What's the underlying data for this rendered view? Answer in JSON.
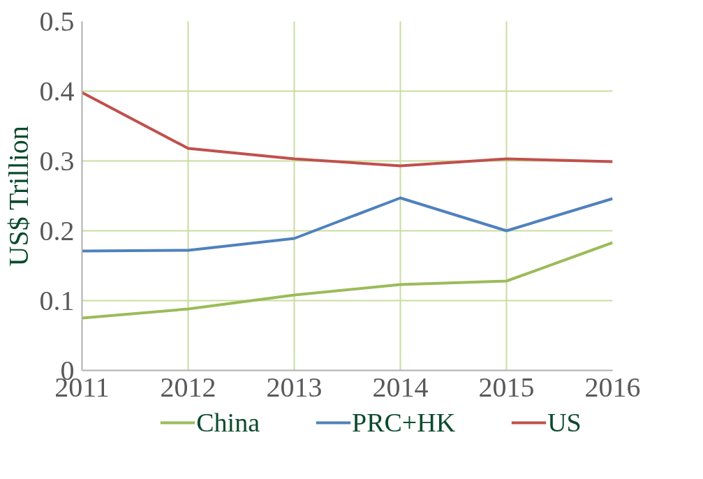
{
  "chart_data": {
    "type": "line",
    "ylabel": "US$ Trillion",
    "x": [
      2011,
      2012,
      2013,
      2014,
      2015,
      2016
    ],
    "series": [
      {
        "name": "China",
        "color": "#9bbb59",
        "values": [
          0.075,
          0.088,
          0.108,
          0.123,
          0.128,
          0.183
        ]
      },
      {
        "name": "PRC+HK",
        "color": "#4f81bd",
        "values": [
          0.171,
          0.172,
          0.189,
          0.247,
          0.2,
          0.246
        ]
      },
      {
        "name": "US",
        "color": "#c0504d",
        "values": [
          0.398,
          0.318,
          0.303,
          0.293,
          0.303,
          0.299
        ]
      }
    ],
    "xlim": [
      2011,
      2016
    ],
    "xticks": [
      2011,
      2012,
      2013,
      2014,
      2015,
      2016
    ],
    "ylim": [
      0,
      0.5
    ],
    "yticks": [
      0,
      0.1,
      0.2,
      0.3,
      0.4,
      0.5
    ],
    "grid": true,
    "legend": "bottom",
    "marker": "none",
    "line_style": "solid"
  }
}
